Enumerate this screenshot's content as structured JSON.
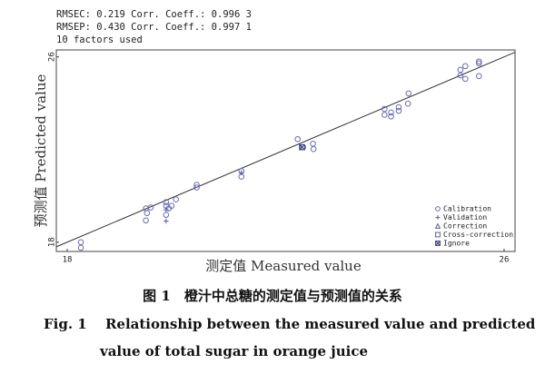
{
  "chart_data": {
    "type": "scatter",
    "annotations": [
      "RMSEC: 0.219   Corr. Coeff.: 0.996 3",
      "RMSEP: 0.430   Corr. Coeff.: 0.997 1",
      "10 factors used"
    ],
    "xlabel": "测定值 Measured value",
    "ylabel": "预测值 Predicted value",
    "xlim": [
      17.8,
      26.2
    ],
    "ylim": [
      17.6,
      26.3
    ],
    "xticks": [
      18,
      26
    ],
    "yticks": [
      18,
      26
    ],
    "legend": "lower right",
    "series": [
      {
        "name": "Calibration",
        "marker": "circle",
        "color": "#6a6ab8",
        "x": [
          18.25,
          18.25,
          19.44,
          19.53,
          19.44,
          19.46,
          19.81,
          19.81,
          19.86,
          19.81,
          19.91,
          19.99,
          20.37,
          20.37,
          21.19,
          21.19,
          22.22,
          22.32,
          22.5,
          22.51,
          23.81,
          23.81,
          23.93,
          23.93,
          24.07,
          24.07,
          24.24,
          24.25,
          25.2,
          25.2,
          25.29,
          25.29,
          25.54,
          25.54,
          25.54
        ],
        "y": [
          18.0,
          17.76,
          19.46,
          19.5,
          18.94,
          19.26,
          19.73,
          19.57,
          19.46,
          19.18,
          19.57,
          19.85,
          20.48,
          20.36,
          21.07,
          20.83,
          22.45,
          22.1,
          22.25,
          22.02,
          23.75,
          23.5,
          23.6,
          23.43,
          23.67,
          23.83,
          23.98,
          24.42,
          25.44,
          25.2,
          25.6,
          25.05,
          25.8,
          25.72,
          25.17
        ]
      },
      {
        "name": "Validation",
        "marker": "plus",
        "color": "#5a5aa8",
        "x": [
          19.81,
          19.81,
          21.19
        ],
        "y": [
          18.91,
          19.4,
          21.0
        ]
      },
      {
        "name": "Correction",
        "marker": "triangle",
        "color": "#5a5aa8",
        "x": [],
        "y": []
      },
      {
        "name": "Cross-correction",
        "marker": "square",
        "color": "#5a5aa8",
        "x": [],
        "y": []
      },
      {
        "name": "Ignore",
        "marker": "ignore",
        "color": "#3a3a7a",
        "x": [
          22.3
        ],
        "y": [
          22.1
        ]
      }
    ]
  },
  "caption": {
    "cn": "图 1　橙汁中总糖的测定值与预测值的关系",
    "en_line1": "Fig. 1　 Relationship between the measured value and predicted",
    "en_line2": "value of total sugar in orange juice"
  }
}
